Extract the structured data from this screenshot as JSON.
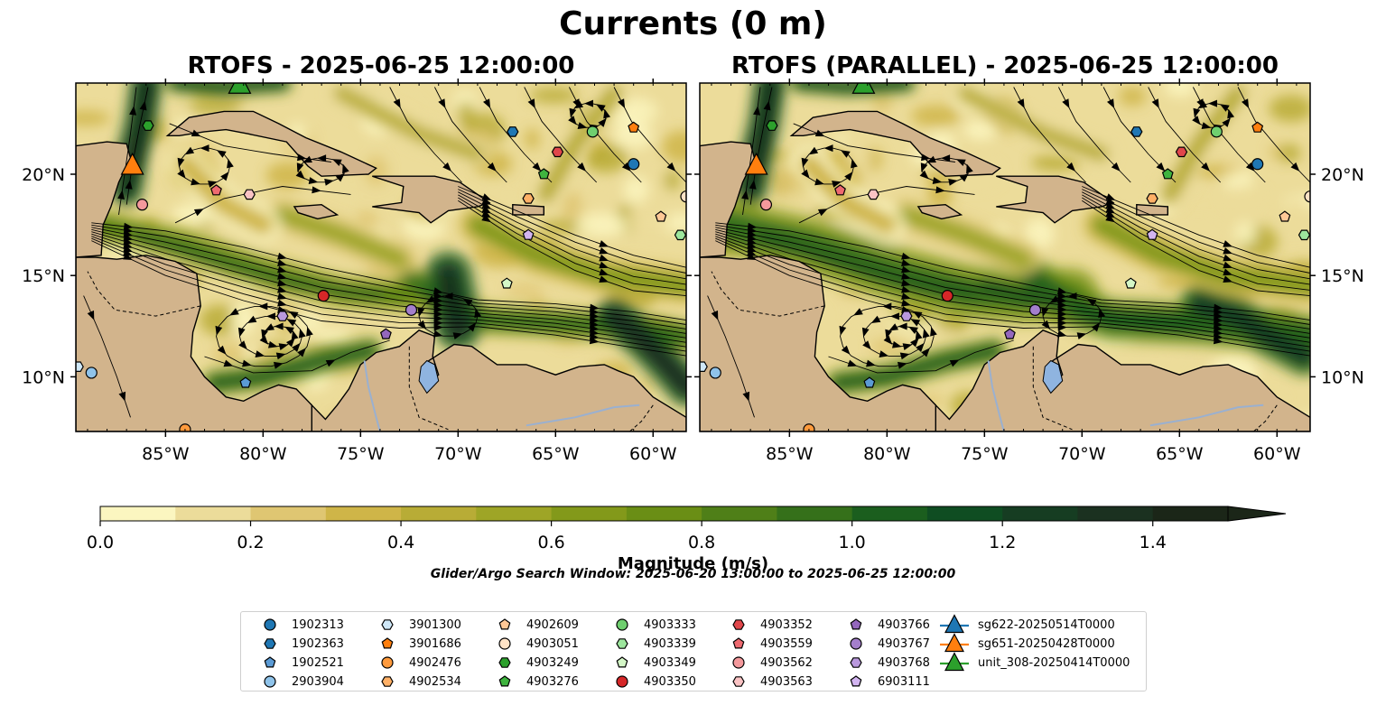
{
  "title": "Currents (0 m)",
  "panels": [
    {
      "title": "RTOFS - 2025-06-25 12:00:00"
    },
    {
      "title": "RTOFS (PARALLEL) - 2025-06-25 12:00:00"
    }
  ],
  "lon_ticks": [
    "85°W",
    "80°W",
    "75°W",
    "70°W",
    "65°W",
    "60°W"
  ],
  "lat_ticks": [
    "20°N",
    "15°N",
    "10°N"
  ],
  "extent": {
    "lon": [
      -89.6,
      -58.3
    ],
    "lat": [
      7.3,
      24.5
    ]
  },
  "colorbar": {
    "label": "Magnitude (m/s)",
    "ticks": [
      "0.0",
      "0.2",
      "0.4",
      "0.6",
      "0.8",
      "1.0",
      "1.2",
      "1.4"
    ],
    "min": 0.0,
    "max": 1.5,
    "step": 0.1,
    "extend": "max",
    "colors": [
      "#fbf6c0",
      "#ecdc9a",
      "#dfc672",
      "#cfb548",
      "#b8ac36",
      "#9ea526",
      "#83991a",
      "#6a8e15",
      "#4f7f18",
      "#35701a",
      "#1b5e1e",
      "#0f4d22",
      "#163d22",
      "#1b3120",
      "#1b2618"
    ],
    "land": "#d2b48c",
    "lakes": "#8fb4e0"
  },
  "search_window": "Glider/Argo Search Window: 2025-06-20 13:00:00 to 2025-06-25 12:00:00",
  "legend": [
    {
      "label": "1902313",
      "marker": "circle",
      "color": "#1f77b4"
    },
    {
      "label": "1902363",
      "marker": "hexagon",
      "color": "#1f77b4"
    },
    {
      "label": "1902521",
      "marker": "pentagon",
      "color": "#5b9bd5"
    },
    {
      "label": "2903904",
      "marker": "circle",
      "color": "#8fc3ea"
    },
    {
      "label": "3901300",
      "marker": "hexagon",
      "color": "#cfe8f8"
    },
    {
      "label": "3901686",
      "marker": "pentagon",
      "color": "#ff7f0e"
    },
    {
      "label": "4902476",
      "marker": "circle",
      "color": "#ff9a3c"
    },
    {
      "label": "4902534",
      "marker": "hexagon",
      "color": "#ffb066"
    },
    {
      "label": "4902609",
      "marker": "pentagon",
      "color": "#ffc896"
    },
    {
      "label": "4903051",
      "marker": "circle",
      "color": "#ffe3c6"
    },
    {
      "label": "4903249",
      "marker": "hexagon",
      "color": "#2ca02c"
    },
    {
      "label": "4903276",
      "marker": "pentagon",
      "color": "#3fb43f"
    },
    {
      "label": "4903333",
      "marker": "circle",
      "color": "#6fcf6f"
    },
    {
      "label": "4903339",
      "marker": "hexagon",
      "color": "#9de69d"
    },
    {
      "label": "4903349",
      "marker": "pentagon",
      "color": "#d4f7c7"
    },
    {
      "label": "4903350",
      "marker": "circle",
      "color": "#d62728"
    },
    {
      "label": "4903352",
      "marker": "hexagon",
      "color": "#e0474b"
    },
    {
      "label": "4903559",
      "marker": "pentagon",
      "color": "#ee6a70"
    },
    {
      "label": "4903562",
      "marker": "circle",
      "color": "#f4999c"
    },
    {
      "label": "4903563",
      "marker": "hexagon",
      "color": "#fac3c4"
    },
    {
      "label": "4903766",
      "marker": "pentagon",
      "color": "#9467bd"
    },
    {
      "label": "4903767",
      "marker": "circle",
      "color": "#a47fcc"
    },
    {
      "label": "4903768",
      "marker": "hexagon",
      "color": "#b998dd"
    },
    {
      "label": "6903111",
      "marker": "pentagon",
      "color": "#d2b4f0"
    },
    {
      "label": "sg622-20250514T0000",
      "marker": "triangle",
      "color": "#1f77b4"
    },
    {
      "label": "sg651-20250428T0000",
      "marker": "triangle",
      "color": "#ff7f0e"
    },
    {
      "label": "unit_308-20250414T0000",
      "marker": "triangle",
      "color": "#2ca02c"
    }
  ],
  "floats": [
    {
      "id": "1902313",
      "lon": -61.0,
      "lat": 20.5
    },
    {
      "id": "1902363",
      "lon": -67.2,
      "lat": 22.1
    },
    {
      "id": "1902521",
      "lon": -80.9,
      "lat": 9.7
    },
    {
      "id": "2903904",
      "lon": -88.8,
      "lat": 10.2
    },
    {
      "id": "3901300",
      "lon": -89.5,
      "lat": 10.5
    },
    {
      "id": "3901686",
      "lon": -61.0,
      "lat": 22.3
    },
    {
      "id": "4902476",
      "lon": -84.0,
      "lat": 7.4
    },
    {
      "id": "4902534",
      "lon": -66.4,
      "lat": 18.8
    },
    {
      "id": "4902609",
      "lon": -59.6,
      "lat": 17.9
    },
    {
      "id": "4903051",
      "lon": -58.3,
      "lat": 18.9
    },
    {
      "id": "4903249",
      "lon": -85.9,
      "lat": 22.4
    },
    {
      "id": "4903276",
      "lon": -65.6,
      "lat": 20.0
    },
    {
      "id": "4903333",
      "lon": -63.1,
      "lat": 22.1
    },
    {
      "id": "4903339",
      "lon": -58.6,
      "lat": 17.0
    },
    {
      "id": "4903349",
      "lon": -67.5,
      "lat": 14.6
    },
    {
      "id": "4903350",
      "lon": -76.9,
      "lat": 14.0
    },
    {
      "id": "4903352",
      "lon": -64.9,
      "lat": 21.1
    },
    {
      "id": "4903559",
      "lon": -82.4,
      "lat": 19.2
    },
    {
      "id": "4903562",
      "lon": -86.2,
      "lat": 18.5
    },
    {
      "id": "4903563",
      "lon": -80.7,
      "lat": 19.0
    },
    {
      "id": "4903766",
      "lon": -73.7,
      "lat": 12.1
    },
    {
      "id": "4903767",
      "lon": -72.4,
      "lat": 13.3
    },
    {
      "id": "4903768",
      "lon": -79.0,
      "lat": 13.0
    },
    {
      "id": "6903111",
      "lon": -66.4,
      "lat": 17.0
    }
  ],
  "gliders": [
    {
      "id": "sg651-20250428T0000",
      "lon": -86.7,
      "lat": 20.4
    },
    {
      "id": "unit_308-20250414T0000",
      "lon": -81.2,
      "lat": 24.4
    }
  ]
}
